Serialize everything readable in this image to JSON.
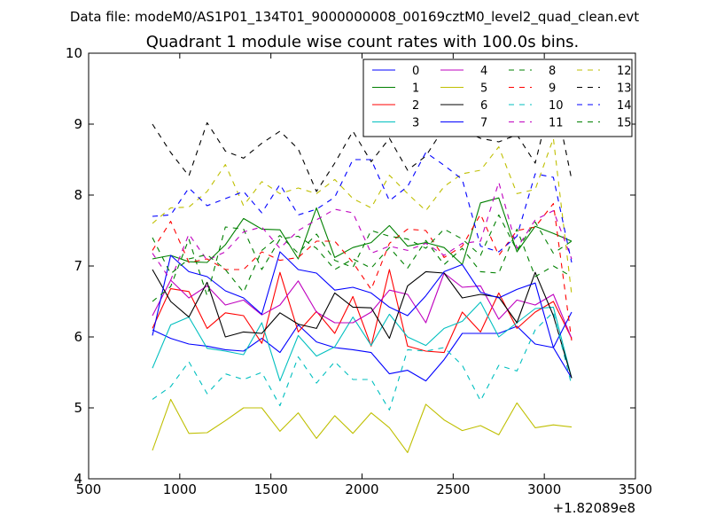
{
  "figure": {
    "suptitle": "Data file: modeM0/AS1P01_134T01_9000000008_00169cztM0_level2_quad_clean.evt",
    "title": "Quadrant 1 module wise count rates with 100.0s bins.",
    "offset_label": "+1.82089e8"
  },
  "chart_data": {
    "type": "line",
    "title": "Quadrant 1 module wise count rates with 100.0s bins.",
    "xlabel": "",
    "ylabel": "",
    "xlim": [
      500,
      3500
    ],
    "ylim": [
      4,
      10
    ],
    "x_offset": 182089000,
    "x_ticks": [
      500,
      1000,
      1500,
      2000,
      2500,
      3000,
      3500
    ],
    "y_ticks": [
      4,
      5,
      6,
      7,
      8,
      9,
      10
    ],
    "grid": false,
    "legend_position": "top-right",
    "x": [
      850,
      950,
      1050,
      1150,
      1250,
      1350,
      1450,
      1550,
      1650,
      1750,
      1850,
      1950,
      2050,
      2150,
      2250,
      2350,
      2450,
      2550,
      2650,
      2750,
      2850,
      2950,
      3050,
      3150
    ],
    "series": [
      {
        "name": "0",
        "color": "#0000ff",
        "dash": "solid",
        "values": [
          6.1,
          5.98,
          5.9,
          5.87,
          5.82,
          5.8,
          5.98,
          5.78,
          6.17,
          5.93,
          5.85,
          5.82,
          5.78,
          5.48,
          5.53,
          5.38,
          5.68,
          6.05,
          6.05,
          6.05,
          6.15,
          5.9,
          5.85,
          5.42
        ]
      },
      {
        "name": "1",
        "color": "#008000",
        "dash": "solid",
        "values": [
          7.1,
          7.15,
          7.06,
          7.05,
          7.3,
          7.67,
          7.52,
          7.51,
          7.1,
          7.82,
          7.12,
          7.26,
          7.33,
          7.57,
          7.28,
          7.33,
          7.26,
          7.02,
          7.89,
          7.96,
          7.2,
          7.56,
          7.46,
          7.35
        ]
      },
      {
        "name": "2",
        "color": "#ff0000",
        "dash": "solid",
        "values": [
          6.12,
          6.68,
          6.64,
          6.12,
          6.34,
          6.3,
          5.91,
          6.91,
          6.07,
          6.36,
          6.05,
          6.57,
          5.87,
          6.95,
          5.87,
          5.8,
          5.78,
          6.35,
          6.07,
          6.62,
          6.12,
          6.35,
          6.5,
          5.98
        ]
      },
      {
        "name": "3",
        "color": "#00bfbf",
        "dash": "solid",
        "values": [
          5.56,
          6.17,
          6.28,
          5.84,
          5.8,
          5.75,
          6.2,
          5.38,
          6.02,
          5.73,
          5.86,
          6.28,
          5.88,
          6.32,
          6.0,
          5.88,
          6.12,
          6.22,
          6.49,
          6.0,
          6.2,
          6.4,
          6.42,
          5.42
        ]
      },
      {
        "name": "4",
        "color": "#bf00bf",
        "dash": "solid",
        "values": [
          6.3,
          6.8,
          6.55,
          6.72,
          6.45,
          6.52,
          6.31,
          6.45,
          6.79,
          6.35,
          6.2,
          6.2,
          6.35,
          6.66,
          6.6,
          6.2,
          6.9,
          6.7,
          6.72,
          6.25,
          6.52,
          6.45,
          6.6,
          5.98
        ]
      },
      {
        "name": "5",
        "color": "#bfbf00",
        "dash": "solid",
        "values": [
          4.4,
          5.12,
          4.64,
          4.65,
          4.82,
          5.0,
          5.0,
          4.67,
          4.93,
          4.57,
          4.89,
          4.64,
          4.93,
          4.72,
          4.37,
          5.05,
          4.83,
          4.68,
          4.75,
          4.62,
          5.07,
          4.72,
          4.76,
          4.73
        ]
      },
      {
        "name": "6",
        "color": "#000000",
        "dash": "solid",
        "values": [
          6.95,
          6.5,
          6.28,
          6.77,
          6.0,
          6.07,
          6.05,
          6.34,
          6.18,
          6.12,
          6.62,
          6.42,
          6.41,
          5.98,
          6.72,
          6.92,
          6.9,
          6.55,
          6.6,
          6.56,
          6.2,
          6.91,
          6.3,
          5.42
        ]
      },
      {
        "name": "7",
        "color": "#0000ff",
        "dash": "solid",
        "values": [
          6.02,
          7.15,
          6.92,
          6.85,
          6.65,
          6.55,
          6.32,
          7.2,
          6.95,
          6.9,
          6.66,
          6.7,
          6.62,
          6.42,
          6.3,
          6.58,
          6.92,
          7.02,
          6.63,
          6.55,
          6.67,
          6.76,
          5.85,
          6.35
        ]
      },
      {
        "name": "8",
        "color": "#008000",
        "dash": "dashed",
        "values": [
          6.5,
          6.71,
          7.38,
          6.58,
          7.55,
          7.52,
          6.95,
          7.38,
          7.42,
          7.25,
          6.95,
          7.1,
          6.97,
          7.26,
          6.97,
          7.36,
          7.02,
          7.25,
          6.92,
          6.9,
          7.52,
          6.85,
          7.0,
          6.85
        ]
      },
      {
        "name": "9",
        "color": "#ff0000",
        "dash": "dashed",
        "values": [
          7.22,
          7.63,
          7.05,
          7.1,
          6.95,
          6.95,
          7.2,
          7.08,
          7.12,
          7.35,
          7.35,
          7.05,
          6.67,
          7.32,
          7.52,
          7.5,
          7.12,
          7.28,
          7.73,
          7.15,
          7.5,
          7.55,
          7.88,
          5.95
        ]
      },
      {
        "name": "10",
        "color": "#00bfbf",
        "dash": "dashed",
        "values": [
          5.12,
          5.3,
          5.65,
          5.2,
          5.48,
          5.4,
          5.5,
          5.03,
          5.72,
          5.35,
          5.65,
          5.4,
          5.4,
          4.97,
          5.82,
          5.8,
          5.85,
          5.6,
          5.1,
          5.6,
          5.52,
          6.1,
          6.35,
          5.32
        ]
      },
      {
        "name": "11",
        "color": "#bf00bf",
        "dash": "dashed",
        "values": [
          7.18,
          6.8,
          7.45,
          7.08,
          7.2,
          7.48,
          7.55,
          7.25,
          7.5,
          7.65,
          7.8,
          7.75,
          7.18,
          7.28,
          7.22,
          7.32,
          7.15,
          7.32,
          7.35,
          8.18,
          7.25,
          7.65,
          7.78,
          7.1
        ]
      },
      {
        "name": "12",
        "color": "#bfbf00",
        "dash": "dashed",
        "values": [
          7.6,
          7.82,
          7.83,
          8.05,
          8.43,
          7.85,
          8.19,
          8.02,
          8.1,
          8.02,
          8.22,
          7.95,
          7.82,
          8.28,
          8.02,
          7.78,
          8.12,
          8.3,
          8.35,
          8.68,
          8.02,
          8.08,
          8.8,
          6.6
        ]
      },
      {
        "name": "13",
        "color": "#000000",
        "dash": "dashed",
        "values": [
          9.0,
          8.6,
          8.27,
          9.02,
          8.62,
          8.52,
          8.73,
          8.9,
          8.65,
          8.05,
          8.45,
          8.9,
          8.47,
          8.8,
          8.35,
          8.55,
          8.95,
          8.92,
          8.8,
          8.75,
          8.85,
          8.45,
          9.48,
          8.22
        ]
      },
      {
        "name": "14",
        "color": "#0000ff",
        "dash": "dashed",
        "values": [
          7.7,
          7.72,
          8.1,
          7.85,
          7.95,
          8.05,
          7.75,
          8.15,
          7.72,
          7.8,
          7.97,
          8.5,
          8.5,
          7.92,
          8.12,
          8.6,
          8.42,
          8.22,
          7.28,
          7.2,
          7.42,
          8.3,
          8.25,
          7.05
        ]
      },
      {
        "name": "15",
        "color": "#008000",
        "dash": "dashed",
        "values": [
          7.4,
          6.89,
          7.1,
          7.16,
          6.95,
          6.63,
          7.22,
          7.43,
          7.18,
          7.45,
          7.08,
          6.98,
          7.5,
          7.42,
          7.38,
          7.25,
          7.52,
          7.38,
          7.15,
          7.72,
          7.22,
          7.62,
          7.18,
          7.35
        ]
      }
    ]
  }
}
